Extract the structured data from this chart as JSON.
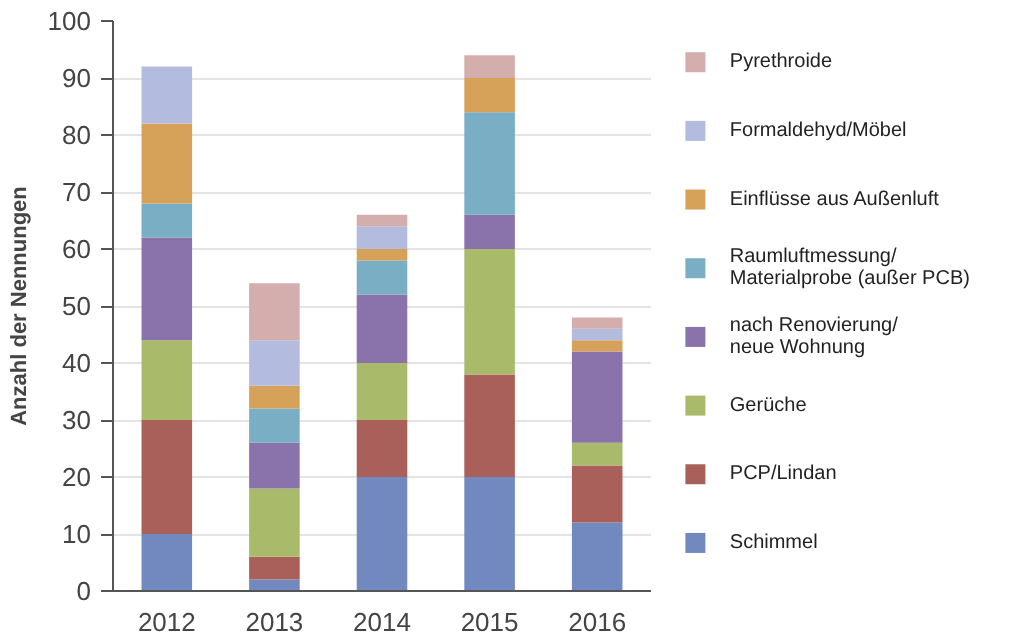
{
  "chart_data": {
    "type": "bar",
    "stacked": true,
    "ylabel": "Anzahl der Nennungen",
    "categories": [
      "2012",
      "2013",
      "2014",
      "2015",
      "2016"
    ],
    "series": [
      {
        "name": "Schimmel",
        "color": "#7189bf",
        "values": [
          10,
          2,
          20,
          20,
          12
        ]
      },
      {
        "name": "PCP/Lindan",
        "color": "#a9605a",
        "values": [
          20,
          4,
          10,
          18,
          10
        ]
      },
      {
        "name": "Gerüche",
        "color": "#a9bb6b",
        "values": [
          14,
          12,
          10,
          22,
          4
        ]
      },
      {
        "name": "nach Renovierung/\nneue Wohnung",
        "color": "#8a72aa",
        "values": [
          18,
          8,
          12,
          6,
          16
        ]
      },
      {
        "name": "Raumluftmessung/\nMaterialprobe (außer PCB)",
        "color": "#79aec4",
        "values": [
          6,
          6,
          6,
          18,
          0
        ]
      },
      {
        "name": "Einflüsse aus Außenluft",
        "color": "#d6a25a",
        "values": [
          14,
          4,
          2,
          6,
          2
        ]
      },
      {
        "name": "Formaldehyd/Möbel",
        "color": "#b3bbde",
        "values": [
          10,
          8,
          4,
          0,
          2
        ]
      },
      {
        "name": "Pyrethroide",
        "color": "#d4aeac",
        "values": [
          0,
          10,
          2,
          4,
          2
        ]
      }
    ],
    "ylim": [
      0,
      100
    ],
    "yticks": [
      0,
      10,
      20,
      30,
      40,
      50,
      60,
      70,
      80,
      90,
      100
    ],
    "grid": "y",
    "legend": "right"
  }
}
